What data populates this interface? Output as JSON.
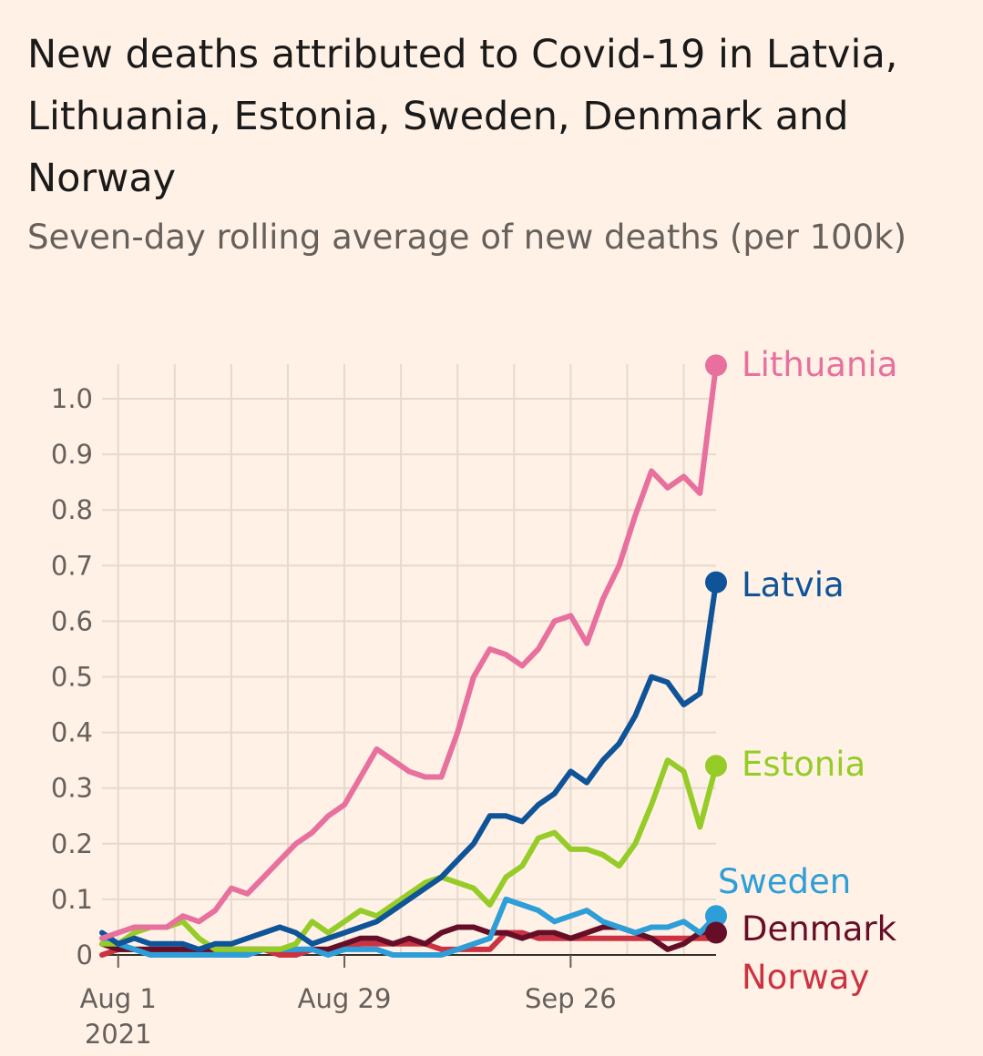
{
  "chart_data": {
    "type": "line",
    "title": "New deaths attributed to Covid-19 in Latvia, Lithuania, Estonia, Sweden, Denmark and Norway",
    "subtitle": "Seven-day rolling average of new deaths (per 100k)",
    "xlabel": "",
    "ylabel": "",
    "ylim": [
      0,
      1.0
    ],
    "yticks": [
      "0",
      "0.1",
      "0.2",
      "0.3",
      "0.4",
      "0.5",
      "0.6",
      "0.7",
      "0.8",
      "0.9",
      "1.0"
    ],
    "xticks": [
      {
        "date": "2021-08-01",
        "label": "Aug 1",
        "sublabel": "2021"
      },
      {
        "date": "2021-08-29",
        "label": "Aug 29",
        "sublabel": ""
      },
      {
        "date": "2021-09-26",
        "label": "Sep 26",
        "sublabel": ""
      }
    ],
    "x_start": "2021-07-30",
    "x_end": "2021-10-14",
    "grid": true,
    "legend": "right (labels at line ends)",
    "series": [
      {
        "name": "Lithuania",
        "color": "#E8709E",
        "x": [
          "2021-07-30",
          "2021-08-01",
          "2021-08-03",
          "2021-08-05",
          "2021-08-07",
          "2021-08-09",
          "2021-08-11",
          "2021-08-13",
          "2021-08-15",
          "2021-08-17",
          "2021-08-19",
          "2021-08-21",
          "2021-08-23",
          "2021-08-25",
          "2021-08-27",
          "2021-08-29",
          "2021-08-31",
          "2021-09-02",
          "2021-09-04",
          "2021-09-06",
          "2021-09-08",
          "2021-09-10",
          "2021-09-12",
          "2021-09-14",
          "2021-09-16",
          "2021-09-18",
          "2021-09-20",
          "2021-09-22",
          "2021-09-24",
          "2021-09-26",
          "2021-09-28",
          "2021-09-30",
          "2021-10-02",
          "2021-10-04",
          "2021-10-06",
          "2021-10-08",
          "2021-10-10",
          "2021-10-12",
          "2021-10-14"
        ],
        "y": [
          0.03,
          0.04,
          0.05,
          0.05,
          0.05,
          0.07,
          0.06,
          0.08,
          0.12,
          0.11,
          0.14,
          0.17,
          0.2,
          0.22,
          0.25,
          0.27,
          0.32,
          0.37,
          0.35,
          0.33,
          0.32,
          0.32,
          0.4,
          0.5,
          0.55,
          0.54,
          0.52,
          0.55,
          0.6,
          0.61,
          0.56,
          0.64,
          0.7,
          0.79,
          0.87,
          0.84,
          0.86,
          0.83,
          1.06
        ]
      },
      {
        "name": "Latvia",
        "color": "#0F5499",
        "x": [
          "2021-07-30",
          "2021-08-01",
          "2021-08-03",
          "2021-08-05",
          "2021-08-07",
          "2021-08-09",
          "2021-08-11",
          "2021-08-13",
          "2021-08-15",
          "2021-08-17",
          "2021-08-19",
          "2021-08-21",
          "2021-08-23",
          "2021-08-25",
          "2021-08-27",
          "2021-08-29",
          "2021-08-31",
          "2021-09-02",
          "2021-09-04",
          "2021-09-06",
          "2021-09-08",
          "2021-09-10",
          "2021-09-12",
          "2021-09-14",
          "2021-09-16",
          "2021-09-18",
          "2021-09-20",
          "2021-09-22",
          "2021-09-24",
          "2021-09-26",
          "2021-09-28",
          "2021-09-30",
          "2021-10-02",
          "2021-10-04",
          "2021-10-06",
          "2021-10-08",
          "2021-10-10",
          "2021-10-12",
          "2021-10-14"
        ],
        "y": [
          0.04,
          0.02,
          0.03,
          0.02,
          0.02,
          0.02,
          0.01,
          0.02,
          0.02,
          0.03,
          0.04,
          0.05,
          0.04,
          0.02,
          0.03,
          0.04,
          0.05,
          0.06,
          0.08,
          0.1,
          0.12,
          0.14,
          0.17,
          0.2,
          0.25,
          0.25,
          0.24,
          0.27,
          0.29,
          0.33,
          0.31,
          0.35,
          0.38,
          0.43,
          0.5,
          0.49,
          0.45,
          0.47,
          0.67
        ]
      },
      {
        "name": "Estonia",
        "color": "#96CC28",
        "x": [
          "2021-07-30",
          "2021-08-01",
          "2021-08-03",
          "2021-08-05",
          "2021-08-07",
          "2021-08-09",
          "2021-08-11",
          "2021-08-13",
          "2021-08-15",
          "2021-08-17",
          "2021-08-19",
          "2021-08-21",
          "2021-08-23",
          "2021-08-25",
          "2021-08-27",
          "2021-08-29",
          "2021-08-31",
          "2021-09-02",
          "2021-09-04",
          "2021-09-06",
          "2021-09-08",
          "2021-09-10",
          "2021-09-12",
          "2021-09-14",
          "2021-09-16",
          "2021-09-18",
          "2021-09-20",
          "2021-09-22",
          "2021-09-24",
          "2021-09-26",
          "2021-09-28",
          "2021-09-30",
          "2021-10-02",
          "2021-10-04",
          "2021-10-06",
          "2021-10-08",
          "2021-10-10",
          "2021-10-12",
          "2021-10-14"
        ],
        "y": [
          0.02,
          0.02,
          0.04,
          0.05,
          0.05,
          0.06,
          0.03,
          0.01,
          0.01,
          0.01,
          0.01,
          0.01,
          0.02,
          0.06,
          0.04,
          0.06,
          0.08,
          0.07,
          0.09,
          0.11,
          0.13,
          0.14,
          0.13,
          0.12,
          0.09,
          0.14,
          0.16,
          0.21,
          0.22,
          0.19,
          0.19,
          0.18,
          0.16,
          0.2,
          0.27,
          0.35,
          0.33,
          0.23,
          0.34
        ]
      },
      {
        "name": "Sweden",
        "color": "#2E9ED8",
        "x": [
          "2021-07-30",
          "2021-08-01",
          "2021-08-03",
          "2021-08-05",
          "2021-08-07",
          "2021-08-09",
          "2021-08-11",
          "2021-08-13",
          "2021-08-15",
          "2021-08-17",
          "2021-08-19",
          "2021-08-21",
          "2021-08-23",
          "2021-08-25",
          "2021-08-27",
          "2021-08-29",
          "2021-08-31",
          "2021-09-02",
          "2021-09-04",
          "2021-09-06",
          "2021-09-08",
          "2021-09-10",
          "2021-09-12",
          "2021-09-14",
          "2021-09-16",
          "2021-09-18",
          "2021-09-20",
          "2021-09-22",
          "2021-09-24",
          "2021-09-26",
          "2021-09-28",
          "2021-09-30",
          "2021-10-02",
          "2021-10-04",
          "2021-10-06",
          "2021-10-08",
          "2021-10-10",
          "2021-10-12",
          "2021-10-14"
        ],
        "y": [
          0.03,
          0.02,
          0.01,
          0.0,
          0.0,
          0.0,
          0.0,
          0.0,
          0.0,
          0.0,
          0.01,
          0.01,
          0.01,
          0.01,
          0.0,
          0.01,
          0.01,
          0.01,
          0.0,
          0.0,
          0.0,
          0.0,
          0.01,
          0.02,
          0.03,
          0.1,
          0.09,
          0.08,
          0.06,
          0.07,
          0.08,
          0.06,
          0.05,
          0.04,
          0.05,
          0.05,
          0.06,
          0.04,
          0.07
        ]
      },
      {
        "name": "Denmark",
        "color": "#660E28",
        "x": [
          "2021-07-30",
          "2021-08-01",
          "2021-08-03",
          "2021-08-05",
          "2021-08-07",
          "2021-08-09",
          "2021-08-11",
          "2021-08-13",
          "2021-08-15",
          "2021-08-17",
          "2021-08-19",
          "2021-08-21",
          "2021-08-23",
          "2021-08-25",
          "2021-08-27",
          "2021-08-29",
          "2021-08-31",
          "2021-09-02",
          "2021-09-04",
          "2021-09-06",
          "2021-09-08",
          "2021-09-10",
          "2021-09-12",
          "2021-09-14",
          "2021-09-16",
          "2021-09-18",
          "2021-09-20",
          "2021-09-22",
          "2021-09-24",
          "2021-09-26",
          "2021-09-28",
          "2021-09-30",
          "2021-10-02",
          "2021-10-04",
          "2021-10-06",
          "2021-10-08",
          "2021-10-10",
          "2021-10-12",
          "2021-10-14"
        ],
        "y": [
          0.02,
          0.01,
          0.01,
          0.01,
          0.01,
          0.01,
          0.01,
          0.01,
          0.01,
          0.01,
          0.01,
          0.01,
          0.01,
          0.01,
          0.01,
          0.02,
          0.03,
          0.03,
          0.02,
          0.03,
          0.02,
          0.04,
          0.05,
          0.05,
          0.04,
          0.04,
          0.03,
          0.04,
          0.04,
          0.03,
          0.04,
          0.05,
          0.05,
          0.04,
          0.03,
          0.01,
          0.02,
          0.04,
          0.04
        ]
      },
      {
        "name": "Norway",
        "color": "#CC3342",
        "x": [
          "2021-07-30",
          "2021-08-01",
          "2021-08-03",
          "2021-08-05",
          "2021-08-07",
          "2021-08-09",
          "2021-08-11",
          "2021-08-13",
          "2021-08-15",
          "2021-08-17",
          "2021-08-19",
          "2021-08-21",
          "2021-08-23",
          "2021-08-25",
          "2021-08-27",
          "2021-08-29",
          "2021-08-31",
          "2021-09-02",
          "2021-09-04",
          "2021-09-06",
          "2021-09-08",
          "2021-09-10",
          "2021-09-12",
          "2021-09-14",
          "2021-09-16",
          "2021-09-18",
          "2021-09-20",
          "2021-09-22",
          "2021-09-24",
          "2021-09-26",
          "2021-09-28",
          "2021-09-30",
          "2021-10-02",
          "2021-10-04",
          "2021-10-06",
          "2021-10-08",
          "2021-10-10",
          "2021-10-12",
          "2021-10-14"
        ],
        "y": [
          0.0,
          0.01,
          0.01,
          0.01,
          0.01,
          0.01,
          0.01,
          0.01,
          0.01,
          0.01,
          0.01,
          0.0,
          0.0,
          0.01,
          0.01,
          0.01,
          0.02,
          0.02,
          0.02,
          0.02,
          0.02,
          0.01,
          0.01,
          0.01,
          0.01,
          0.04,
          0.04,
          0.03,
          0.03,
          0.03,
          0.03,
          0.03,
          0.03,
          0.03,
          0.03,
          0.03,
          0.03,
          0.03,
          0.03
        ]
      }
    ]
  }
}
